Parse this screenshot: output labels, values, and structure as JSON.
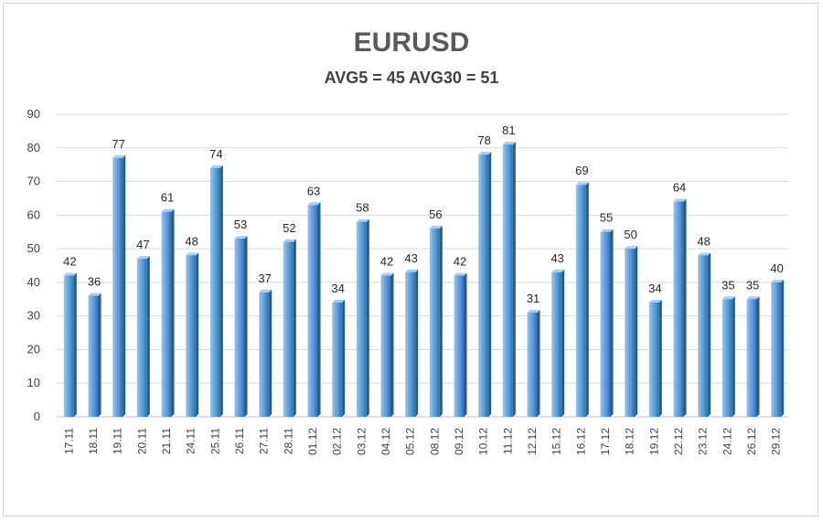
{
  "chart_data": {
    "type": "bar",
    "title": "EURUSD",
    "subtitle": "AVG5 = 45 AVG30 = 51",
    "xlabel": "",
    "ylabel": "",
    "ylim": [
      0,
      90
    ],
    "yticks": [
      0,
      10,
      20,
      30,
      40,
      50,
      60,
      70,
      80,
      90
    ],
    "grid": true,
    "legend": "none",
    "categories": [
      "17.11",
      "18.11",
      "19.11",
      "20.11",
      "21.11",
      "24.11",
      "25.11",
      "26.11",
      "27.11",
      "28.11",
      "01.12",
      "02.12",
      "03.12",
      "04.12",
      "05.12",
      "08.12",
      "09.12",
      "10.12",
      "11.12",
      "12.12",
      "15.12",
      "16.12",
      "17.12",
      "18.12",
      "19.12",
      "22.12",
      "23.12",
      "24.12",
      "26.12",
      "29.12"
    ],
    "values": [
      42,
      36,
      77,
      47,
      61,
      48,
      74,
      53,
      37,
      52,
      63,
      34,
      58,
      42,
      43,
      56,
      42,
      78,
      81,
      31,
      43,
      69,
      55,
      50,
      34,
      64,
      48,
      35,
      35,
      40
    ],
    "colors": {
      "bar_light": "#9cc3ea",
      "bar_mid": "#5b9bd5",
      "bar_dark": "#2e6fb2",
      "grid": "#d9d9d9",
      "axis": "#bfbfbf"
    }
  }
}
